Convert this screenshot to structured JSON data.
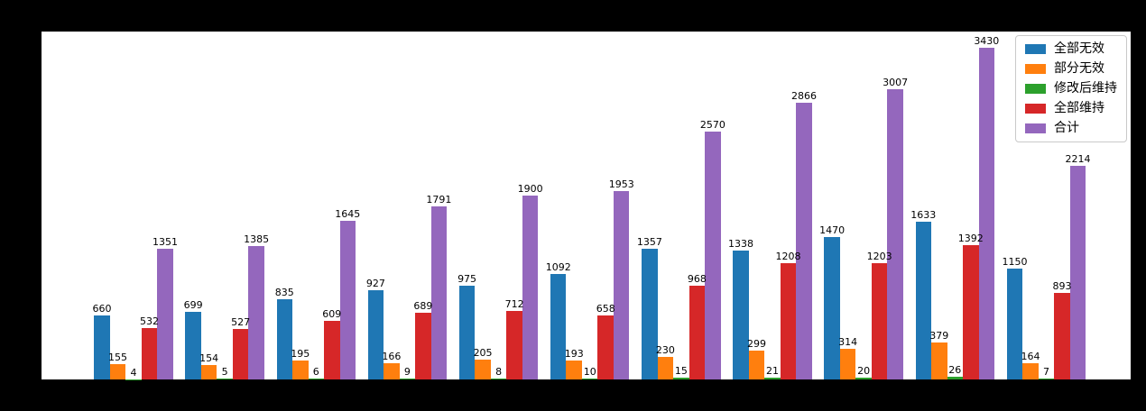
{
  "figure": {
    "background_color": "#000000",
    "plot_background_color": "#ffffff",
    "title": ""
  },
  "chart_data": {
    "type": "bar",
    "title": "",
    "xlabel": "",
    "ylabel": "",
    "categories": [
      "",
      "",
      "",
      "",
      "",
      "",
      "",
      "",
      "",
      "",
      ""
    ],
    "ylim": [
      0,
      3600
    ],
    "grid": false,
    "bar_value_labels": true,
    "legend_position": "upper right",
    "series": [
      {
        "name": "全部无效",
        "color": "#1f77b4",
        "values": [
          660,
          699,
          835,
          927,
          975,
          1092,
          1357,
          1338,
          1470,
          1633,
          1150
        ]
      },
      {
        "name": "部分无效",
        "color": "#ff7f0e",
        "values": [
          155,
          154,
          195,
          166,
          205,
          193,
          230,
          299,
          314,
          379,
          164
        ]
      },
      {
        "name": "修改后维持",
        "color": "#2ca02c",
        "values": [
          4,
          5,
          6,
          9,
          8,
          10,
          15,
          21,
          20,
          26,
          7
        ]
      },
      {
        "name": "全部维持",
        "color": "#d62728",
        "values": [
          532,
          527,
          609,
          689,
          712,
          658,
          968,
          1208,
          1203,
          1392,
          893
        ]
      },
      {
        "name": "合计",
        "color": "#9467bd",
        "values": [
          1351,
          1385,
          1645,
          1791,
          1900,
          1953,
          2570,
          2866,
          3007,
          3430,
          2214
        ]
      }
    ]
  }
}
